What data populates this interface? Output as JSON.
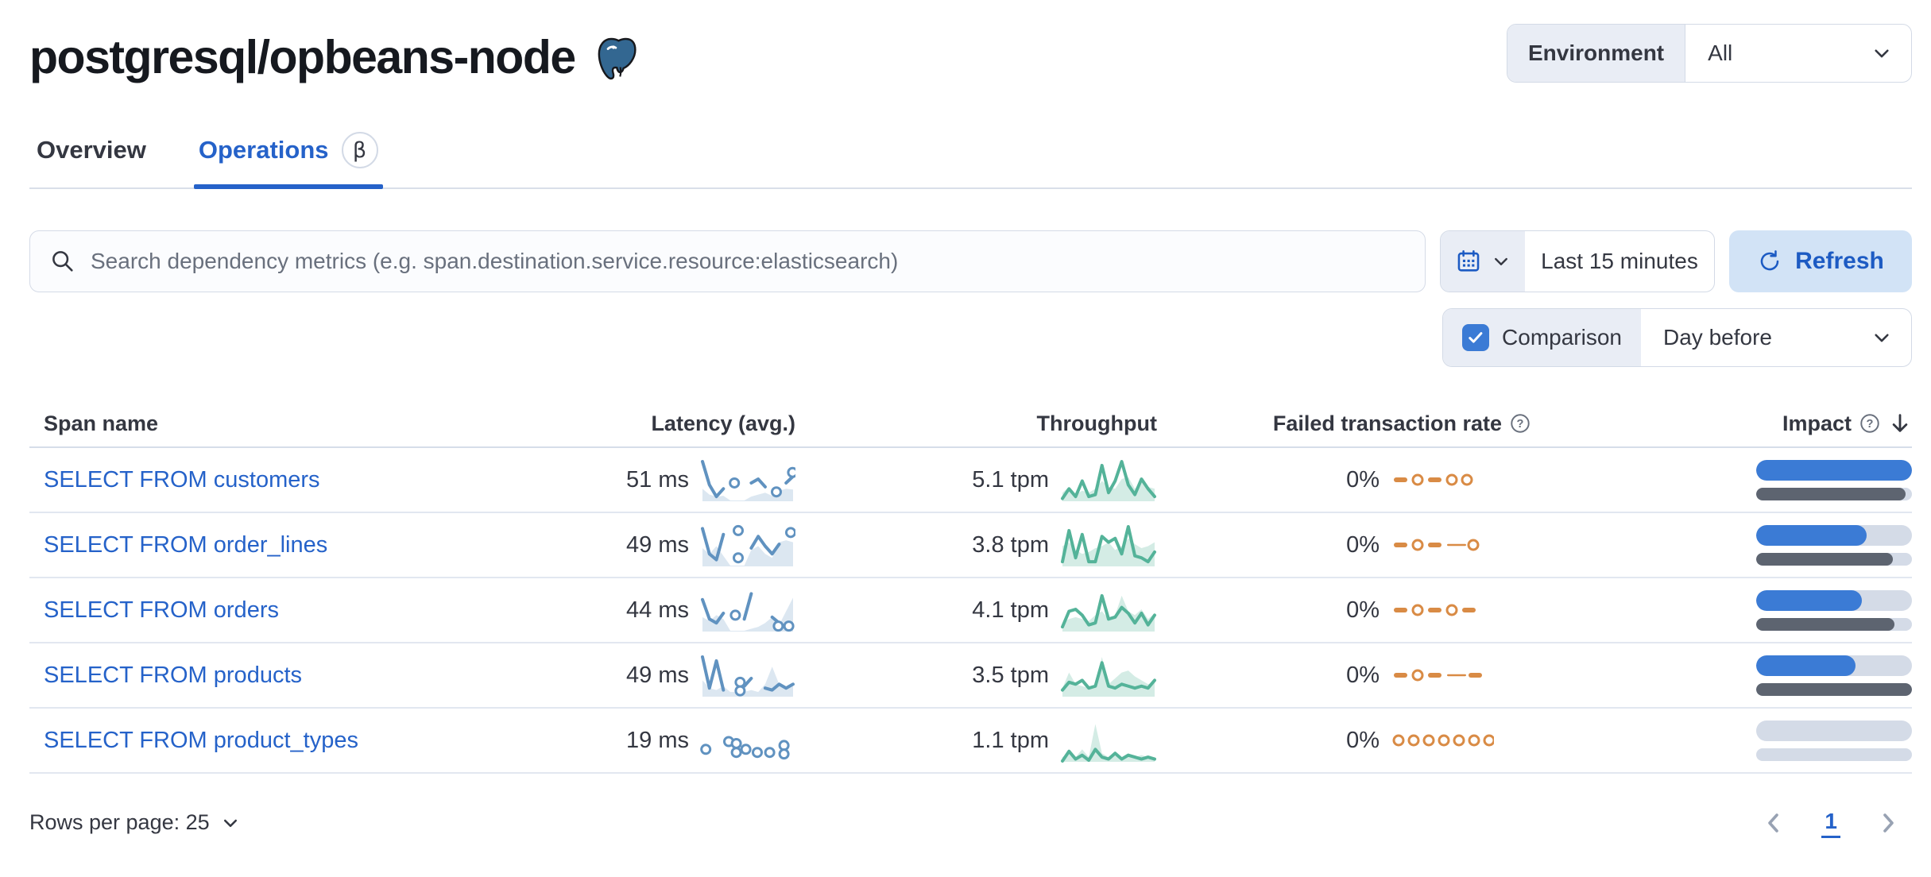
{
  "header": {
    "title": "postgresql/opbeans-node",
    "environment_label": "Environment",
    "environment_value": "All"
  },
  "icons": {
    "title": "postgresql-elephant",
    "search": "magnifier",
    "datepicker": "calendar",
    "refresh": "refresh-arrow",
    "column_help": "question-circle",
    "sort": "arrow-down",
    "dropdowns": "chevron-down",
    "pagination": [
      "chevron-left",
      "chevron-right"
    ]
  },
  "tabs": [
    {
      "label": "Overview",
      "active": false
    },
    {
      "label": "Operations",
      "active": true,
      "badge": "β"
    }
  ],
  "toolbar": {
    "search_placeholder": "Search dependency metrics (e.g. span.destination.service.resource:elasticsearch)",
    "time_range": "Last 15 minutes",
    "refresh_label": "Refresh",
    "comparison_label": "Comparison",
    "comparison_checked": true,
    "comparison_value": "Day before"
  },
  "colors": {
    "primary_blue": "#2562c9",
    "bar_blue": "#3b7bd5",
    "bar_grey": "#5d6470",
    "bar_track": "#d4dbe7",
    "latency_spark": "#6092c0",
    "latency_area": "rgba(96,146,192,0.22)",
    "throughput_spark": "#54b399",
    "throughput_area": "rgba(84,179,153,0.25)",
    "failed_spark": "#d98b45"
  },
  "table": {
    "columns": {
      "span": "Span name",
      "latency": "Latency (avg.)",
      "throughput": "Throughput",
      "failed": "Failed transaction rate",
      "impact": "Impact"
    },
    "rows": [
      {
        "span_name": "SELECT FROM customers",
        "latency": "51 ms",
        "throughput": "5.1 tpm",
        "failed_rate": "0%",
        "impact_pct": 100,
        "impact_prev_pct": 96,
        "sparks": {
          "latency": {
            "area": [
              0.3,
              0.15,
              0.1,
              0.12,
              0,
              0,
              0,
              0.1,
              0.15,
              0.2,
              0.12,
              0.25,
              0.3,
              0.28
            ],
            "line": [
              1.0,
              0.4,
              0.1,
              0.3,
              null,
              null,
              null,
              0.45,
              0.55,
              0.35,
              null,
              null,
              0.45,
              0.62
            ],
            "dots": [
              {
                "x": 0.36,
                "y": 0.45
              },
              {
                "x": 0.8,
                "y": 0.22
              },
              {
                "x": 0.97,
                "y": 0.72
              }
            ]
          },
          "throughput": {
            "area": [
              0.2,
              0.35,
              0.15,
              0.25,
              0.2,
              0.3,
              0.5,
              0.35,
              0.3,
              0.55,
              0.6,
              0.3,
              0.5,
              0.35,
              0.3
            ],
            "line": [
              0.05,
              0.3,
              0.1,
              0.5,
              0.1,
              0.15,
              0.9,
              0.2,
              0.5,
              1.0,
              0.4,
              0.15,
              0.55,
              0.3,
              0.1
            ]
          },
          "failed": {
            "tokens": [
              "dash",
              "dot",
              "dash",
              "dot",
              "dot"
            ]
          }
        }
      },
      {
        "span_name": "SELECT FROM order_lines",
        "latency": "49 ms",
        "throughput": "3.8 tpm",
        "failed_rate": "0%",
        "impact_pct": 71,
        "impact_prev_pct": 88,
        "sparks": {
          "latency": {
            "area": [
              0.45,
              0.3,
              0.5,
              0.25,
              0,
              0,
              0,
              0.4,
              0.5,
              0.3,
              0.2,
              0.6,
              0.65,
              0.6
            ],
            "line": [
              0.95,
              0.3,
              0.15,
              0.8,
              null,
              null,
              null,
              0.45,
              0.75,
              0.5,
              0.3,
              0.55,
              null,
              null
            ],
            "dots": [
              {
                "x": 0.4,
                "y": 0.9
              },
              {
                "x": 0.4,
                "y": 0.2
              },
              {
                "x": 0.95,
                "y": 0.85
              }
            ]
          },
          "throughput": {
            "area": [
              0.5,
              0.6,
              0.4,
              0.3,
              0.35,
              0.45,
              0.5,
              0.6,
              0.4,
              0.5,
              0.7,
              0.55,
              0.45,
              0.5,
              0.6
            ],
            "line": [
              0.1,
              0.9,
              0.2,
              0.8,
              0.1,
              0.1,
              0.75,
              0.6,
              0.7,
              0.3,
              1.0,
              0.25,
              0.2,
              0.1,
              0.35
            ]
          },
          "failed": {
            "tokens": [
              "dash",
              "dot",
              "dash",
              "thin",
              "dot"
            ]
          }
        }
      },
      {
        "span_name": "SELECT FROM orders",
        "latency": "44 ms",
        "throughput": "4.1 tpm",
        "failed_rate": "0%",
        "impact_pct": 68,
        "impact_prev_pct": 89,
        "sparks": {
          "latency": {
            "area": [
              0.35,
              0.25,
              0.4,
              0.3,
              0,
              0,
              0,
              0.05,
              0.1,
              0.2,
              0.35,
              0.15,
              0.5,
              0.85
            ],
            "line": [
              0.8,
              0.3,
              0.2,
              0.45,
              null,
              null,
              0.3,
              0.95,
              null,
              null,
              0.35,
              0.2,
              null,
              null
            ],
            "dots": [
              {
                "x": 0.37,
                "y": 0.4
              },
              {
                "x": 0.82,
                "y": 0.12
              },
              {
                "x": 0.93,
                "y": 0.12
              }
            ]
          },
          "throughput": {
            "area": [
              0.2,
              0.3,
              0.35,
              0.3,
              0.25,
              0.4,
              0.5,
              0.3,
              0.4,
              0.9,
              0.5,
              0.4,
              0.55,
              0.3,
              0.45
            ],
            "line": [
              0.1,
              0.5,
              0.55,
              0.4,
              0.15,
              0.2,
              0.9,
              0.3,
              0.35,
              0.6,
              0.45,
              0.2,
              0.45,
              0.15,
              0.4
            ]
          },
          "failed": {
            "tokens": [
              "dash",
              "dot",
              "dash",
              "dot",
              "dash"
            ]
          }
        }
      },
      {
        "span_name": "SELECT FROM products",
        "latency": "49 ms",
        "throughput": "3.5 tpm",
        "failed_rate": "0%",
        "impact_pct": 64,
        "impact_prev_pct": 100,
        "sparks": {
          "latency": {
            "area": [
              0.4,
              0.2,
              0.15,
              0.25,
              0.1,
              0.1,
              0.1,
              0.15,
              0.1,
              0.3,
              0.75,
              0.3,
              0.2,
              0.25
            ],
            "line": [
              1.0,
              0.2,
              0.9,
              0.15,
              null,
              null,
              0.25,
              0.45,
              null,
              0.2,
              0.15,
              0.3,
              0.2,
              0.3
            ],
            "dots": [
              {
                "x": 0.42,
                "y": 0.35
              },
              {
                "x": 0.42,
                "y": 0.13
              }
            ]
          },
          "throughput": {
            "area": [
              0.2,
              0.6,
              0.3,
              0.25,
              0.2,
              0.3,
              1.0,
              0.3,
              0.45,
              0.6,
              0.65,
              0.5,
              0.4,
              0.3,
              0.35
            ],
            "line": [
              0.15,
              0.35,
              0.3,
              0.4,
              0.2,
              0.25,
              0.85,
              0.25,
              0.2,
              0.3,
              0.25,
              0.2,
              0.25,
              0.2,
              0.4
            ]
          },
          "failed": {
            "tokens": [
              "dash",
              "dot",
              "dash",
              "thin",
              "dash"
            ]
          }
        }
      },
      {
        "span_name": "SELECT FROM product_types",
        "latency": "19 ms",
        "throughput": "1.1 tpm",
        "failed_rate": "0%",
        "impact_pct": 0,
        "impact_prev_pct": 0,
        "sparks": {
          "latency": {
            "area": null,
            "line": null,
            "dots": [
              {
                "x": 0.06,
                "y": 0.3
              },
              {
                "x": 0.3,
                "y": 0.5
              },
              {
                "x": 0.38,
                "y": 0.22
              },
              {
                "x": 0.38,
                "y": 0.45
              },
              {
                "x": 0.48,
                "y": 0.3
              },
              {
                "x": 0.6,
                "y": 0.22
              },
              {
                "x": 0.73,
                "y": 0.22
              },
              {
                "x": 0.88,
                "y": 0.4
              },
              {
                "x": 0.88,
                "y": 0.18
              }
            ]
          },
          "throughput": {
            "area": [
              0.1,
              0.2,
              0.1,
              0.3,
              0.1,
              0.95,
              0.2,
              0.1,
              0.15,
              0.1,
              0.2,
              0.1,
              0.15,
              0.1,
              0.1
            ],
            "line": [
              0.0,
              0.25,
              0.05,
              0.15,
              0.02,
              0.3,
              0.1,
              0.05,
              0.2,
              0.05,
              0.15,
              0.1,
              0.05,
              0.1,
              0.05
            ]
          },
          "failed": {
            "tokens": [
              "dot",
              "dot",
              "dot",
              "dot",
              "dot",
              "dot",
              "dot"
            ]
          }
        }
      }
    ]
  },
  "footer": {
    "rows_per_page": "Rows per page: 25",
    "page": "1"
  }
}
